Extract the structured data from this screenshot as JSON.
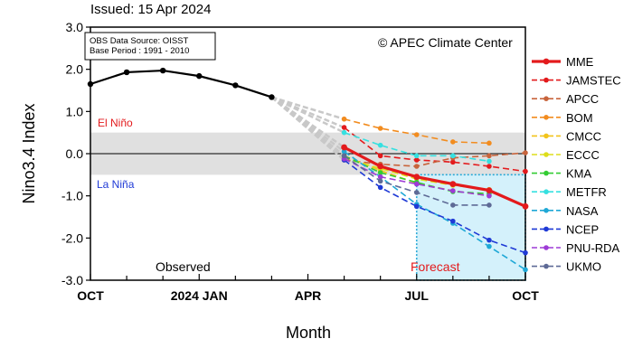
{
  "chart_data": {
    "type": "line",
    "issued": "Issued: 15 Apr 2024",
    "ylabel": "Nino3.4 Index",
    "xlabel": "Month",
    "ylim": [
      -3.0,
      3.0
    ],
    "yticks": [
      -3.0,
      -2.0,
      -1.0,
      0.0,
      1.0,
      2.0,
      3.0
    ],
    "ytick_labels": [
      "-3.0",
      "-2.0",
      "-1.0",
      "0.0",
      "1.0",
      "2.0",
      "3.0"
    ],
    "x_tick_labels": [
      {
        "month": "2023-10",
        "label": "OCT"
      },
      {
        "month": "2024-01",
        "label": "2024 JAN"
      },
      {
        "month": "2024-04",
        "label": "APR"
      },
      {
        "month": "2024-07",
        "label": "JUL"
      },
      {
        "month": "2024-10",
        "label": "OCT"
      }
    ],
    "x_minor_months": [
      "2023-11",
      "2023-12",
      "2024-02",
      "2024-03",
      "2024-05",
      "2024-06",
      "2024-08",
      "2024-09"
    ],
    "neutral_band": [
      -0.5,
      0.5
    ],
    "annotations": {
      "source_line1": "OBS Data Source: OISST",
      "source_line2": "Base Period : 1991 - 2010",
      "copyright": "© APEC Climate Center",
      "el_nino": "El Niño",
      "la_nina": "La Niña",
      "observed": "Observed",
      "forecast": "Forecast"
    },
    "colors": {
      "observed": "#000000",
      "neutral_band": "#e0e0e0",
      "forecast_box_fill": "#d4f1fb",
      "forecast_box_border": "#29a9d6",
      "el_nino_text": "#e31a1c",
      "la_nina_text": "#1f3ad6",
      "dashed_connector": "#c8c8c8"
    },
    "observed": {
      "months": [
        "2023-10",
        "2023-11",
        "2023-12",
        "2024-01",
        "2024-02",
        "2024-03"
      ],
      "values": [
        1.65,
        1.93,
        1.97,
        1.84,
        1.62,
        1.34
      ]
    },
    "forecast_months": [
      "2024-05",
      "2024-06",
      "2024-07",
      "2024-08",
      "2024-09",
      "2024-10"
    ],
    "series": [
      {
        "name": "MME",
        "color": "#e31a1c",
        "values": [
          0.15,
          -0.3,
          -0.55,
          -0.72,
          -0.87,
          -1.25
        ]
      },
      {
        "name": "JAMSTEC",
        "color": "#e31a1c",
        "values": [
          0.62,
          -0.05,
          -0.15,
          -0.2,
          -0.3,
          -0.42
        ]
      },
      {
        "name": "APCC",
        "color": "#c8643c",
        "values": [
          -0.15,
          -0.25,
          -0.3,
          -0.1,
          -0.05,
          0.02
        ]
      },
      {
        "name": "BOM",
        "color": "#f28c1f",
        "values": [
          0.82,
          0.6,
          0.45,
          0.28,
          0.25,
          null
        ]
      },
      {
        "name": "CMCC",
        "color": "#f2c41b",
        "values": [
          -0.05,
          -0.4,
          -0.7,
          -0.88,
          -1.0,
          null
        ]
      },
      {
        "name": "ECCC",
        "color": "#dede1b",
        "values": [
          -0.1,
          -0.35,
          -0.6,
          -0.75,
          -0.85,
          null
        ]
      },
      {
        "name": "KMA",
        "color": "#33cc33",
        "values": [
          -0.05,
          -0.45,
          -0.68,
          -0.9,
          -0.95,
          null
        ]
      },
      {
        "name": "METFR",
        "color": "#36e0e0",
        "values": [
          0.5,
          0.2,
          -0.05,
          -0.05,
          -0.18,
          null
        ]
      },
      {
        "name": "NASA",
        "color": "#1fa8d6",
        "values": [
          0.05,
          -0.55,
          -1.2,
          -1.65,
          -2.2,
          -2.75
        ]
      },
      {
        "name": "NCEP",
        "color": "#1f3ad6",
        "values": [
          -0.15,
          -0.8,
          -1.25,
          -1.6,
          -2.05,
          -2.35
        ]
      },
      {
        "name": "PNU-RDA",
        "color": "#9d3bd6",
        "values": [
          -0.12,
          -0.55,
          -0.72,
          -0.88,
          -1.0,
          null
        ]
      },
      {
        "name": "UKMO",
        "color": "#5e6a96",
        "values": [
          -0.05,
          -0.65,
          -0.92,
          -1.22,
          -1.22,
          null
        ]
      }
    ]
  }
}
